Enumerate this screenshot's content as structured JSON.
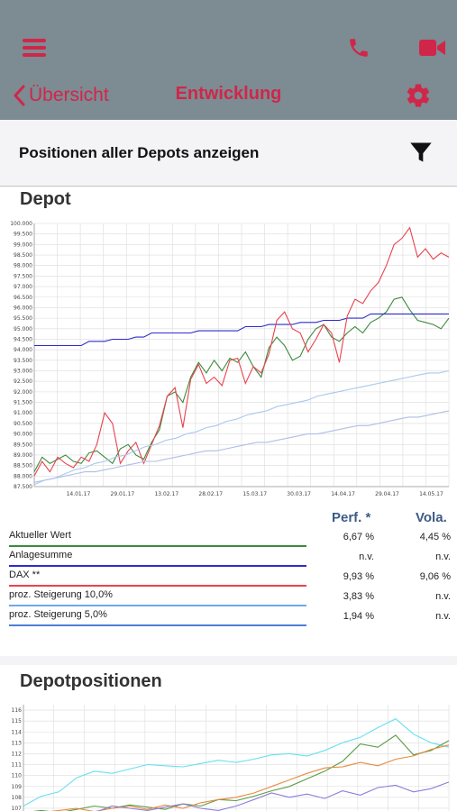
{
  "header": {
    "back_label": "Übersicht",
    "title": "Entwicklung",
    "accent": "#d0264a",
    "bar_color": "#7d8b92"
  },
  "filter": {
    "label": "Positionen aller Depots anzeigen"
  },
  "depot": {
    "title": "Depot",
    "chart_data": {
      "type": "line",
      "y_ticks": [
        "100.000",
        "99.500",
        "99.000",
        "98.500",
        "98.000",
        "97.500",
        "97.000",
        "96.500",
        "96.000",
        "95.500",
        "95.000",
        "94.500",
        "94.000",
        "93.500",
        "93.000",
        "92.500",
        "92.000",
        "91.500",
        "91.000",
        "90.500",
        "90.000",
        "89.500",
        "89.000",
        "88.500",
        "88.000",
        "87.500"
      ],
      "ylim": [
        87500,
        100000
      ],
      "x_ticks": [
        "14.01.17",
        "29.01.17",
        "13.02.17",
        "28.02.17",
        "15.03.17",
        "30.03.17",
        "14.04.17",
        "29.04.17",
        "14.05.17"
      ],
      "series": [
        {
          "name": "Aktueller Wert",
          "color": "#3c8a3c",
          "values": [
            88200,
            88900,
            88600,
            88800,
            89000,
            88700,
            88600,
            89100,
            89200,
            88900,
            88600,
            89300,
            89500,
            89000,
            88800,
            89600,
            90200,
            91800,
            92000,
            91500,
            92700,
            93400,
            92900,
            93500,
            93000,
            93600,
            93400,
            93900,
            93200,
            92700,
            94100,
            94600,
            94200,
            93500,
            93700,
            94500,
            95000,
            95200,
            94600,
            94400,
            94800,
            95100,
            94800,
            95300,
            95500,
            95800,
            96400,
            96500,
            95900,
            95400,
            95300,
            95200,
            95000,
            95500
          ]
        },
        {
          "name": "Anlagesumme",
          "color": "#2c2ccc",
          "values": [
            94200,
            94200,
            94200,
            94200,
            94200,
            94200,
            94200,
            94400,
            94400,
            94400,
            94500,
            94500,
            94500,
            94600,
            94600,
            94800,
            94800,
            94800,
            94800,
            94800,
            94800,
            94900,
            94900,
            94900,
            94900,
            94900,
            94900,
            95100,
            95100,
            95100,
            95200,
            95200,
            95200,
            95200,
            95300,
            95300,
            95300,
            95400,
            95400,
            95400,
            95500,
            95500,
            95500,
            95700,
            95700,
            95700,
            95700,
            95700,
            95700,
            95700,
            95700,
            95700,
            95700,
            95700
          ]
        },
        {
          "name": "DAX **",
          "color": "#e8434f",
          "values": [
            88000,
            88700,
            88200,
            88900,
            88600,
            88400,
            88900,
            88700,
            89500,
            91000,
            90500,
            88600,
            89200,
            89600,
            88600,
            89500,
            90400,
            91800,
            92200,
            90300,
            92600,
            93300,
            92400,
            92700,
            92300,
            93500,
            93600,
            92400,
            93200,
            92900,
            93800,
            95400,
            95800,
            95000,
            94800,
            93900,
            94500,
            95200,
            94800,
            93400,
            95600,
            96400,
            96200,
            96800,
            97200,
            98000,
            99000,
            99300,
            99800,
            98400,
            98800,
            98300,
            98600,
            98400
          ]
        },
        {
          "name": "proz. Steigerung 10,0%",
          "color": "#a9c8ec",
          "values": [
            87600,
            87800,
            87900,
            88100,
            88300,
            88400,
            88600,
            88700,
            88900,
            89000,
            89200,
            89400,
            89500,
            89700,
            89800,
            90000,
            90100,
            90300,
            90400,
            90600,
            90700,
            90900,
            91000,
            91100,
            91300,
            91400,
            91500,
            91600,
            91800,
            91900,
            92000,
            92100,
            92200,
            92300,
            92400,
            92500,
            92600,
            92700,
            92800,
            92900,
            92900,
            93000
          ]
        },
        {
          "name": "proz. Steigerung 5,0%",
          "color": "#aebfe6",
          "values": [
            87700,
            87800,
            87900,
            88000,
            88100,
            88200,
            88200,
            88300,
            88400,
            88500,
            88600,
            88700,
            88700,
            88800,
            88900,
            89000,
            89100,
            89200,
            89200,
            89300,
            89400,
            89500,
            89600,
            89600,
            89700,
            89800,
            89900,
            90000,
            90000,
            90100,
            90200,
            90300,
            90400,
            90400,
            90500,
            90600,
            90700,
            90800,
            90800,
            90900,
            91000,
            91100
          ]
        }
      ]
    },
    "table": {
      "col_perf": "Perf. *",
      "col_vola": "Vola.",
      "rows": [
        {
          "name": "Aktueller Wert",
          "perf": "6,67 %",
          "vola": "4,45 %",
          "color": "#3c8a3c"
        },
        {
          "name": "Anlagesumme",
          "perf": "n.v.",
          "vola": "n.v.",
          "color": "#2c2ccc"
        },
        {
          "name": "DAX **",
          "perf": "9,93 %",
          "vola": "9,06 %",
          "color": "#e8434f"
        },
        {
          "name": "proz. Steigerung 10,0%",
          "perf": "3,83 %",
          "vola": "n.v.",
          "color": "#6fa8e8"
        },
        {
          "name": "proz. Steigerung 5,0%",
          "perf": "1,94 %",
          "vola": "n.v.",
          "color": "#4e7fd8"
        }
      ]
    }
  },
  "positions": {
    "title": "Depotpositionen",
    "chart_data": {
      "type": "line",
      "y_ticks": [
        "116",
        "115",
        "114",
        "113",
        "112",
        "111",
        "110",
        "109",
        "108",
        "107"
      ],
      "ylim": [
        106.5,
        116.5
      ],
      "series": [
        {
          "color": "#66e0ef",
          "values": [
            107.2,
            108.1,
            108.5,
            109.8,
            110.4,
            110.2,
            110.6,
            111.0,
            110.9,
            110.8,
            111.1,
            111.4,
            111.2,
            111.5,
            111.9,
            112.0,
            111.8,
            112.3,
            113.0,
            113.5,
            114.4,
            115.2,
            113.8,
            113.0,
            112.6
          ]
        },
        {
          "color": "#5a9b45",
          "values": [
            106.6,
            106.8,
            106.6,
            106.9,
            107.2,
            107.0,
            107.3,
            107.1,
            106.9,
            107.4,
            107.2,
            107.8,
            107.7,
            108.1,
            108.6,
            109.0,
            109.7,
            110.4,
            111.3,
            112.9,
            112.6,
            113.7,
            111.9,
            112.3,
            113.2
          ]
        },
        {
          "color": "#e9893f",
          "values": [
            106.5,
            106.6,
            106.8,
            107.0,
            106.7,
            107.0,
            107.2,
            106.9,
            107.3,
            107.0,
            107.5,
            107.8,
            108.0,
            108.4,
            109.0,
            109.6,
            110.2,
            110.7,
            110.8,
            111.2,
            110.9,
            111.5,
            111.8,
            112.4,
            112.8
          ]
        },
        {
          "color": "#8b7dd8",
          "values": [
            106.5,
            106.5,
            106.6,
            106.7,
            106.6,
            107.2,
            107.0,
            106.8,
            107.1,
            107.4,
            107.0,
            106.8,
            107.2,
            107.8,
            108.4,
            108.0,
            108.3,
            107.9,
            108.6,
            108.2,
            108.9,
            109.1,
            108.5,
            108.8,
            109.4
          ]
        }
      ]
    }
  }
}
